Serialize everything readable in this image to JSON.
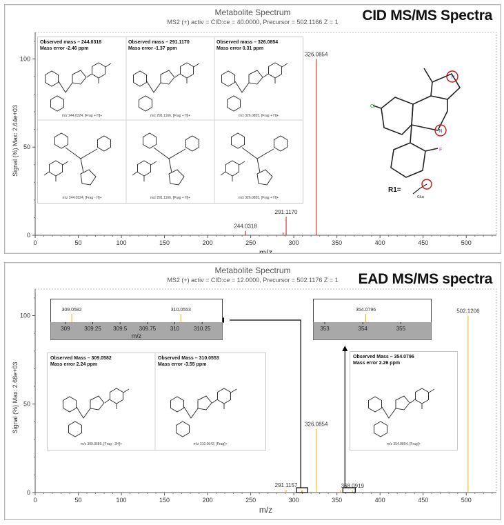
{
  "panels": {
    "top": {
      "title": "Metabolite Spectrum",
      "subtitle": "MS2 (+) activ = CID:ce = 40.0000, Precursor = 502.1166 Z = 1",
      "big_title": "CID MS/MS Spectra",
      "insets": [
        {
          "observed": "Observed mass – 244.0318",
          "error": "Mass error -2.46 ppm",
          "frag_top": "m/z 244.0324, [Frag + H]+",
          "frag_bottom": "m/z 244.0324, [Frag - H]+"
        },
        {
          "observed": "Observed mass – 291.1170",
          "error": "Mass error -1.37 ppm",
          "frag_top": "m/z 291.1166, [Frag + H]+",
          "frag_bottom": "m/z 291.1166, [Frag + H]+"
        },
        {
          "observed": "Observed mass – 326.0854",
          "error": "Mass error 0.31 ppm",
          "frag_top": "m/z 326.0855, [Frag + H]+",
          "frag_bottom": "m/z 326.0855, [Frag + H]+"
        }
      ],
      "r1_label": "R1=",
      "gluc_label": "Gluc",
      "cl_label": "Cl",
      "f_label": "F",
      "n_label": "N"
    },
    "bottom": {
      "title": "Metabolite Spectrum",
      "subtitle": "MS2 (+) activ = CID:ce = 12.0000, Precursor = 502.1176 Z = 1",
      "big_title": "EAD MS/MS spectra",
      "insets": [
        {
          "observed": "Observed Mass – 309.0582",
          "error": "Mass error 2.24 ppm",
          "frag": "m/z 309.0589, [Frag - 2H]+"
        },
        {
          "observed": "Observed Mass – 310.0553",
          "error": "Mass error -3.55 ppm",
          "frag": "m/z 310.0542, [Frag]+"
        },
        {
          "observed": "Observed Mass – 354.0796",
          "error": "Mass error 2.26 ppm",
          "frag": "m/z 354.0804, [Frag]+"
        }
      ]
    }
  },
  "colors": {
    "cid_peak": "#cc1111",
    "ead_peak": "#f0b000",
    "zoom_band": "#a8a8a8",
    "highlight_circle": "#cc1111"
  },
  "chart_data": [
    {
      "type": "bar",
      "title": "Metabolite Spectrum",
      "subtitle": "MS2 (+) activ = CID:ce = 40.0000, Precursor = 502.1166 Z = 1",
      "xlabel": "m/z",
      "ylabel": "Signal (%) Max: 2.64e+03",
      "xlim": [
        0,
        535
      ],
      "ylim": [
        0,
        115
      ],
      "xticks": [
        0,
        50,
        100,
        150,
        200,
        250,
        300,
        350,
        400,
        450,
        500
      ],
      "yticks": [
        0,
        50,
        100
      ],
      "peaks": [
        {
          "x": 244.0318,
          "y": 2.5,
          "label": "244.0318"
        },
        {
          "x": 287.5,
          "y": 1.5,
          "label": ""
        },
        {
          "x": 291.117,
          "y": 10.5,
          "label": "291.1170"
        },
        {
          "x": 326.0854,
          "y": 100,
          "label": "326.0854"
        }
      ]
    },
    {
      "type": "bar",
      "title": "Metabolite Spectrum",
      "subtitle": "MS2 (+) activ = CID:ce = 12.0000, Precursor = 502.1176 Z = 1",
      "xlabel": "m/z",
      "ylabel": "Signal (%) Max: 2.68e+03",
      "xlim": [
        0,
        535
      ],
      "ylim": [
        0,
        115
      ],
      "xticks": [
        0,
        50,
        100,
        150,
        200,
        250,
        300,
        350,
        400,
        450,
        500
      ],
      "yticks": [
        0,
        50,
        100
      ],
      "peaks": [
        {
          "x": 291.1157,
          "y": 1.5,
          "label": "291.1157"
        },
        {
          "x": 309.0582,
          "y": 1.2,
          "label": ""
        },
        {
          "x": 310.0553,
          "y": 1.2,
          "label": ""
        },
        {
          "x": 326.0854,
          "y": 36,
          "label": "326.0854"
        },
        {
          "x": 354.0796,
          "y": 1.2,
          "label": ""
        },
        {
          "x": 368.0919,
          "y": 1.2,
          "label": "368.0919"
        },
        {
          "x": 502.1206,
          "y": 100,
          "label": "502.1206"
        }
      ]
    },
    {
      "type": "bar",
      "xlabel": "m/z",
      "xlim": [
        308.9,
        310.4
      ],
      "xticks": [
        "309",
        "309.25",
        "309.5",
        "309.75",
        "310",
        "310.25"
      ],
      "peaks": [
        {
          "x": 309.0582,
          "y": 100,
          "label": "309.0582"
        },
        {
          "x": 310.0553,
          "y": 100,
          "label": "310.0553"
        }
      ]
    },
    {
      "type": "bar",
      "xlabel": "",
      "xlim": [
        352.8,
        355.7
      ],
      "xticks": [
        "353",
        "354",
        "355"
      ],
      "peaks": [
        {
          "x": 354.0796,
          "y": 100,
          "label": "354.0796"
        }
      ]
    }
  ]
}
